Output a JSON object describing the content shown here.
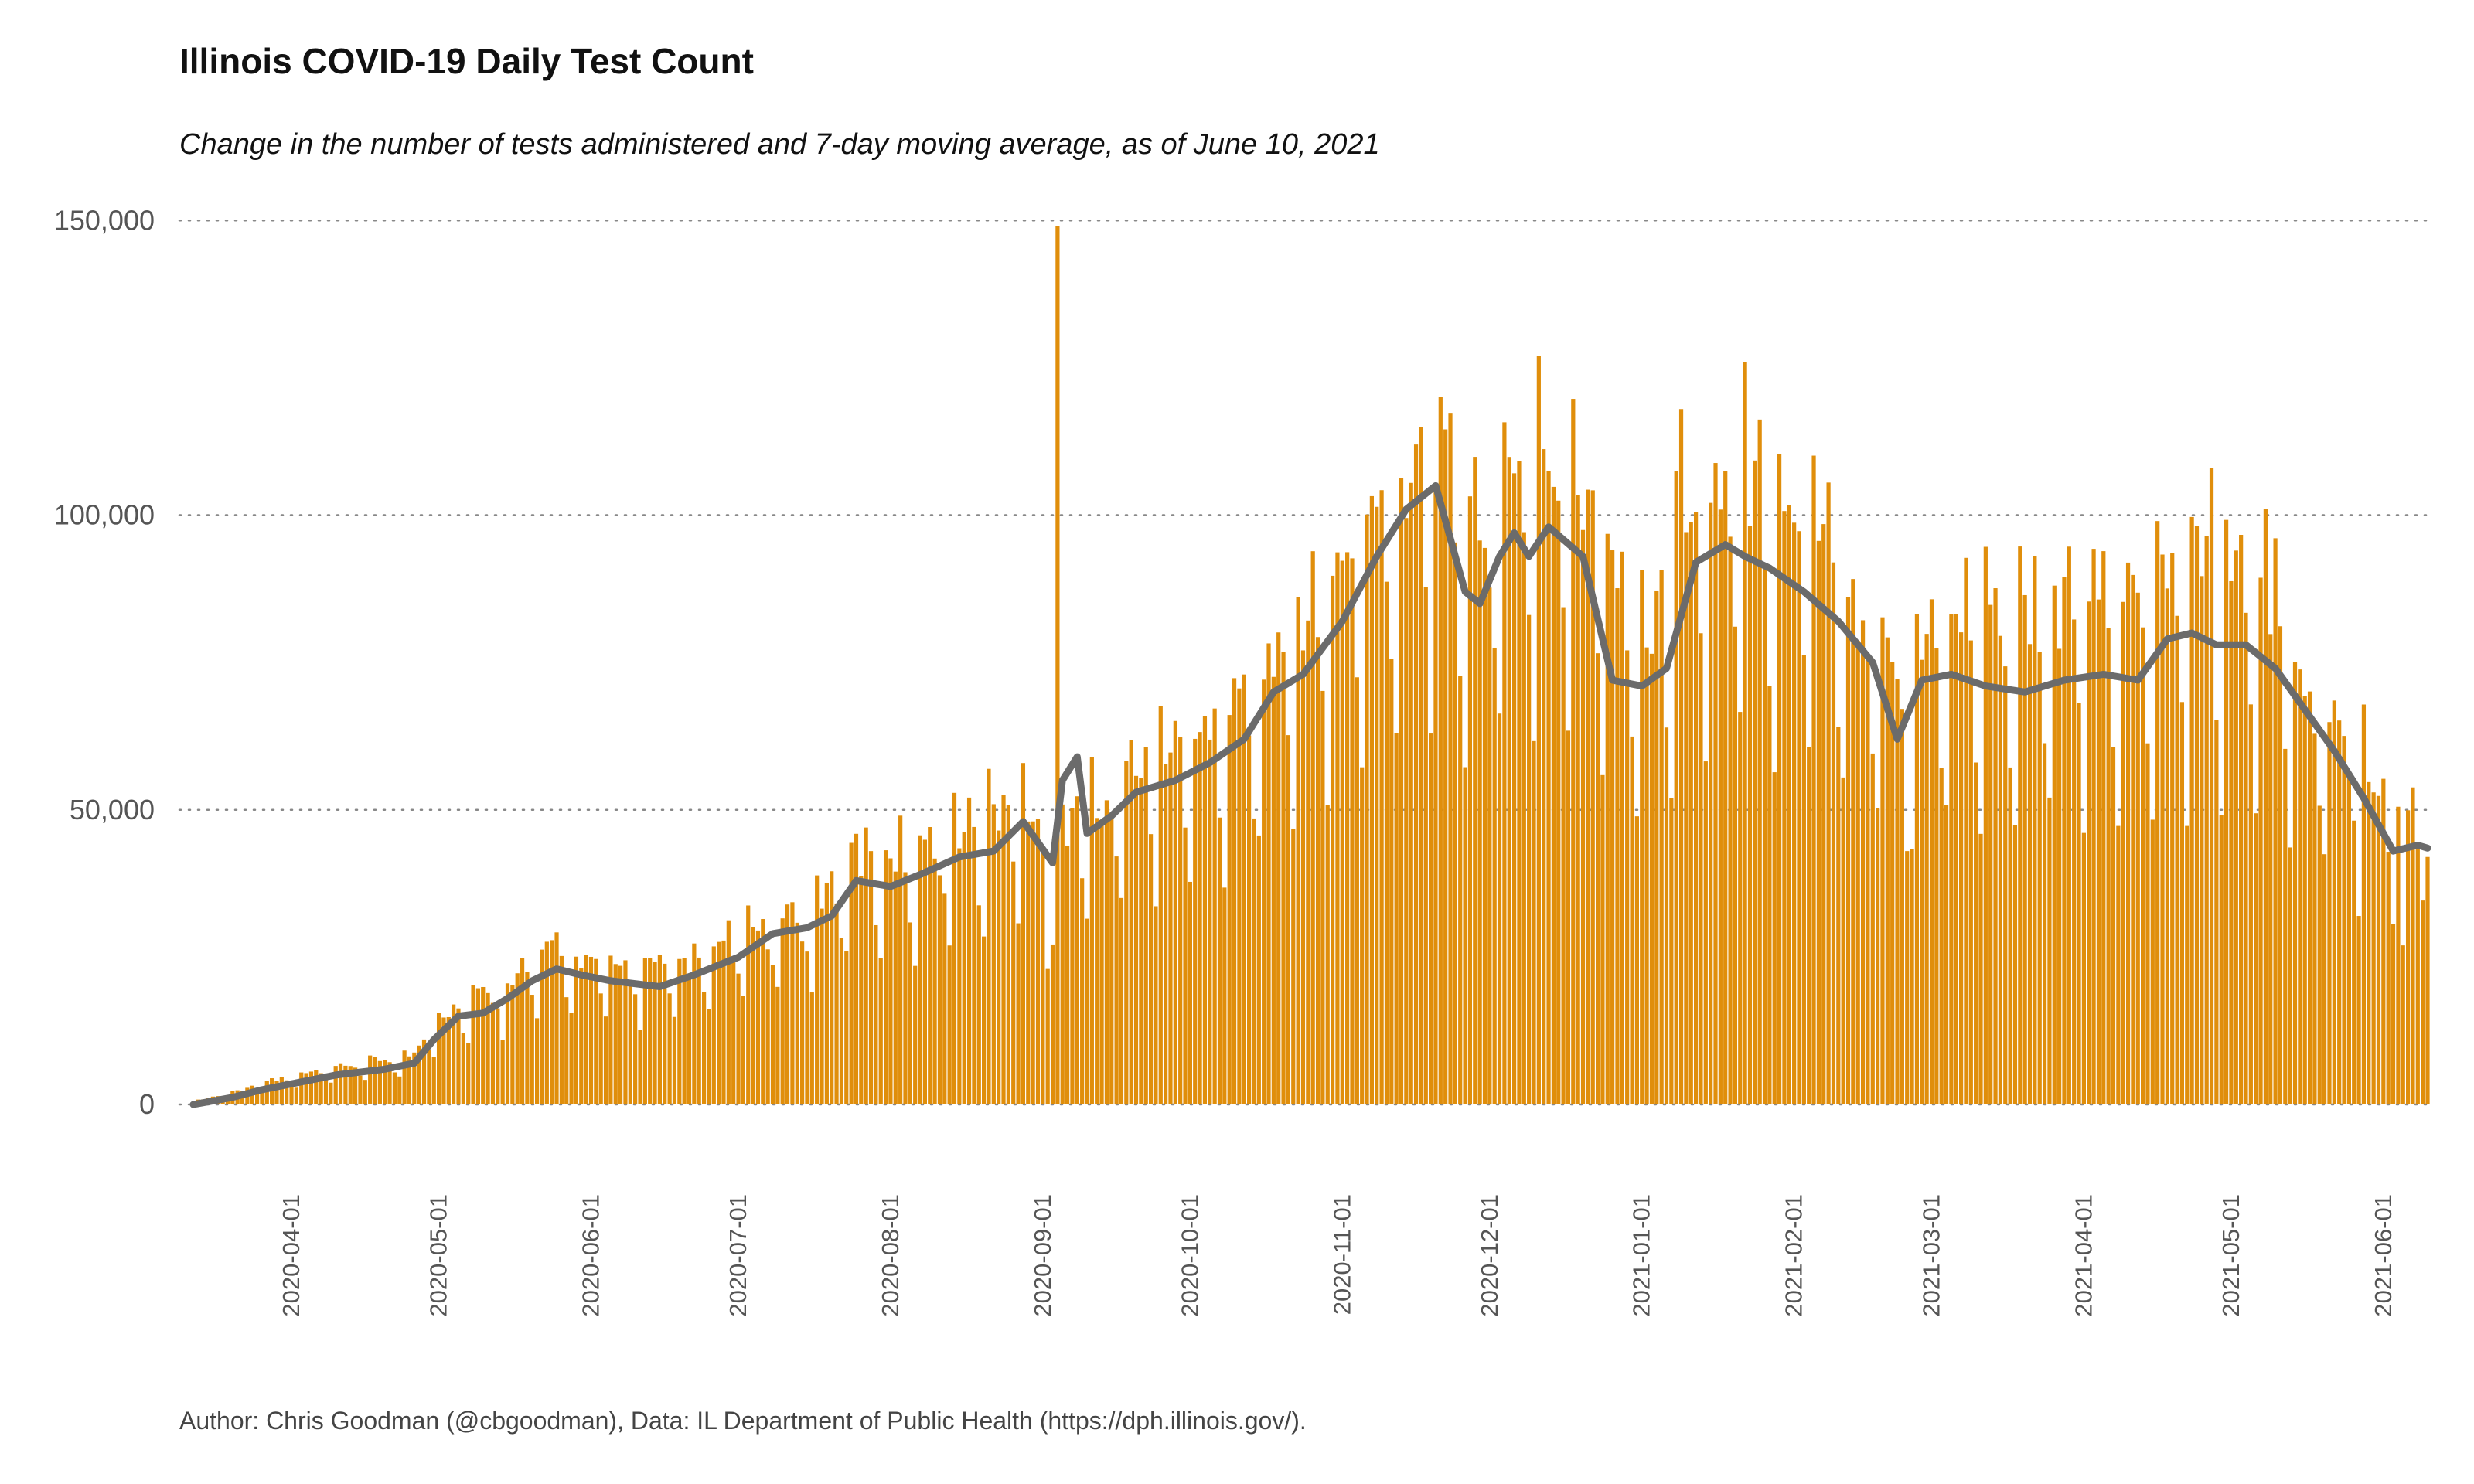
{
  "title": "Illinois COVID-19 Daily Test Count",
  "subtitle": "Change in the number of tests administered and 7-day moving average, as of June 10, 2021",
  "caption": "Author: Chris Goodman (@cbgoodman), Data: IL Department of Public Health (https://dph.illinois.gov/).",
  "colors": {
    "bars": "#E08E0B",
    "average_line": "#6B6B6B",
    "grid": "#888888"
  },
  "chart_data": {
    "type": "bar",
    "series": [
      {
        "name": "",
        "kind": "bar",
        "source": "daily_tests"
      },
      {
        "name": "",
        "kind": "line",
        "source": "moving_average_7day"
      }
    ],
    "x_start": "2020-03-12",
    "x_end": "2021-06-10",
    "xlabel": "",
    "ylabel": "",
    "ylim": [
      -8000,
      152000
    ],
    "grid": {
      "horizontal": true,
      "style": "dotted"
    },
    "y_ticks": [
      0,
      50000,
      100000,
      150000
    ],
    "y_tick_labels": [
      "0",
      "50,000",
      "100,000",
      "150,000"
    ],
    "x_ticks": [
      "2020-04-01",
      "2020-05-01",
      "2020-06-01",
      "2020-07-01",
      "2020-08-01",
      "2020-09-01",
      "2020-10-01",
      "2020-11-01",
      "2020-12-01",
      "2021-01-01",
      "2021-02-01",
      "2021-03-01",
      "2021-04-01",
      "2021-05-01",
      "2021-06-01"
    ],
    "moving_average_7day": [
      {
        "date": "2020-03-12",
        "value": 0
      },
      {
        "date": "2020-03-20",
        "value": 1200
      },
      {
        "date": "2020-03-26",
        "value": 2500
      },
      {
        "date": "2020-04-01",
        "value": 3500
      },
      {
        "date": "2020-04-10",
        "value": 5000
      },
      {
        "date": "2020-04-20",
        "value": 6000
      },
      {
        "date": "2020-04-26",
        "value": 7000
      },
      {
        "date": "2020-04-30",
        "value": 11000
      },
      {
        "date": "2020-05-05",
        "value": 15000
      },
      {
        "date": "2020-05-10",
        "value": 15500
      },
      {
        "date": "2020-05-15",
        "value": 18000
      },
      {
        "date": "2020-05-20",
        "value": 21000
      },
      {
        "date": "2020-05-25",
        "value": 23000
      },
      {
        "date": "2020-05-30",
        "value": 22000
      },
      {
        "date": "2020-06-05",
        "value": 21000
      },
      {
        "date": "2020-06-15",
        "value": 20000
      },
      {
        "date": "2020-06-22",
        "value": 22000
      },
      {
        "date": "2020-07-01",
        "value": 25000
      },
      {
        "date": "2020-07-08",
        "value": 29000
      },
      {
        "date": "2020-07-15",
        "value": 30000
      },
      {
        "date": "2020-07-20",
        "value": 32000
      },
      {
        "date": "2020-07-25",
        "value": 38000
      },
      {
        "date": "2020-08-01",
        "value": 37000
      },
      {
        "date": "2020-08-07",
        "value": 39000
      },
      {
        "date": "2020-08-15",
        "value": 42000
      },
      {
        "date": "2020-08-22",
        "value": 43000
      },
      {
        "date": "2020-08-28",
        "value": 48000
      },
      {
        "date": "2020-09-03",
        "value": 41000
      },
      {
        "date": "2020-09-05",
        "value": 55000
      },
      {
        "date": "2020-09-08",
        "value": 59000
      },
      {
        "date": "2020-09-10",
        "value": 46000
      },
      {
        "date": "2020-09-15",
        "value": 49000
      },
      {
        "date": "2020-09-20",
        "value": 53000
      },
      {
        "date": "2020-09-28",
        "value": 55000
      },
      {
        "date": "2020-10-05",
        "value": 58000
      },
      {
        "date": "2020-10-12",
        "value": 62000
      },
      {
        "date": "2020-10-18",
        "value": 70000
      },
      {
        "date": "2020-10-24",
        "value": 73000
      },
      {
        "date": "2020-11-01",
        "value": 82000
      },
      {
        "date": "2020-11-08",
        "value": 93000
      },
      {
        "date": "2020-11-14",
        "value": 101000
      },
      {
        "date": "2020-11-20",
        "value": 105000
      },
      {
        "date": "2020-11-26",
        "value": 87000
      },
      {
        "date": "2020-11-29",
        "value": 85000
      },
      {
        "date": "2020-12-03",
        "value": 93000
      },
      {
        "date": "2020-12-06",
        "value": 97000
      },
      {
        "date": "2020-12-09",
        "value": 93000
      },
      {
        "date": "2020-12-13",
        "value": 98000
      },
      {
        "date": "2020-12-20",
        "value": 93000
      },
      {
        "date": "2020-12-26",
        "value": 72000
      },
      {
        "date": "2021-01-01",
        "value": 71000
      },
      {
        "date": "2021-01-06",
        "value": 74000
      },
      {
        "date": "2021-01-12",
        "value": 92000
      },
      {
        "date": "2021-01-18",
        "value": 95000
      },
      {
        "date": "2021-01-22",
        "value": 93000
      },
      {
        "date": "2021-01-27",
        "value": 91000
      },
      {
        "date": "2021-02-03",
        "value": 87000
      },
      {
        "date": "2021-02-10",
        "value": 82000
      },
      {
        "date": "2021-02-17",
        "value": 75000
      },
      {
        "date": "2021-02-22",
        "value": 62000
      },
      {
        "date": "2021-02-27",
        "value": 72000
      },
      {
        "date": "2021-03-05",
        "value": 73000
      },
      {
        "date": "2021-03-12",
        "value": 71000
      },
      {
        "date": "2021-03-20",
        "value": 70000
      },
      {
        "date": "2021-03-28",
        "value": 72000
      },
      {
        "date": "2021-04-05",
        "value": 73000
      },
      {
        "date": "2021-04-12",
        "value": 72000
      },
      {
        "date": "2021-04-18",
        "value": 79000
      },
      {
        "date": "2021-04-23",
        "value": 80000
      },
      {
        "date": "2021-04-28",
        "value": 78000
      },
      {
        "date": "2021-05-04",
        "value": 78000
      },
      {
        "date": "2021-05-10",
        "value": 74000
      },
      {
        "date": "2021-05-16",
        "value": 67000
      },
      {
        "date": "2021-05-22",
        "value": 60000
      },
      {
        "date": "2021-05-28",
        "value": 52000
      },
      {
        "date": "2021-06-03",
        "value": 43000
      },
      {
        "date": "2021-06-08",
        "value": 44000
      },
      {
        "date": "2021-06-10",
        "value": 43500
      }
    ],
    "daily_tests_envelope": [
      {
        "date": "2020-03-12",
        "value": 500
      },
      {
        "date": "2020-03-20",
        "value": 2000
      },
      {
        "date": "2020-03-26",
        "value": 3500
      },
      {
        "date": "2020-04-05",
        "value": 5000
      },
      {
        "date": "2020-04-15",
        "value": 6500
      },
      {
        "date": "2020-04-26",
        "value": 8000
      },
      {
        "date": "2020-04-30",
        "value": 14000
      },
      {
        "date": "2020-05-05",
        "value": 16000
      },
      {
        "date": "2020-05-15",
        "value": 20000
      },
      {
        "date": "2020-05-25",
        "value": 25000
      },
      {
        "date": "2020-06-05",
        "value": 22000
      },
      {
        "date": "2020-06-20",
        "value": 22000
      },
      {
        "date": "2020-07-01",
        "value": 27000
      },
      {
        "date": "2020-07-15",
        "value": 31000
      },
      {
        "date": "2020-07-25",
        "value": 40000
      },
      {
        "date": "2020-08-10",
        "value": 42000
      },
      {
        "date": "2020-08-28",
        "value": 50000
      },
      {
        "date": "2020-09-03",
        "value": 45000
      },
      {
        "date": "2020-09-12",
        "value": 50000
      },
      {
        "date": "2020-09-25",
        "value": 57000
      },
      {
        "date": "2020-10-10",
        "value": 63000
      },
      {
        "date": "2020-10-24",
        "value": 78000
      },
      {
        "date": "2020-11-05",
        "value": 90000
      },
      {
        "date": "2020-11-18",
        "value": 106000
      },
      {
        "date": "2020-11-28",
        "value": 93000
      },
      {
        "date": "2020-12-10",
        "value": 104000
      },
      {
        "date": "2020-12-22",
        "value": 97000
      },
      {
        "date": "2021-01-01",
        "value": 78000
      },
      {
        "date": "2021-01-15",
        "value": 100000
      },
      {
        "date": "2021-01-27",
        "value": 97000
      },
      {
        "date": "2021-02-10",
        "value": 88000
      },
      {
        "date": "2021-02-22",
        "value": 70000
      },
      {
        "date": "2021-03-05",
        "value": 79000
      },
      {
        "date": "2021-03-25",
        "value": 78000
      },
      {
        "date": "2021-04-15",
        "value": 82000
      },
      {
        "date": "2021-04-28",
        "value": 86000
      },
      {
        "date": "2021-05-10",
        "value": 80000
      },
      {
        "date": "2021-05-25",
        "value": 58000
      },
      {
        "date": "2021-06-10",
        "value": 44000
      }
    ],
    "daily_tests_notable": [
      {
        "date": "2020-09-04",
        "value": 149000
      },
      {
        "date": "2020-09-02",
        "value": 23000
      },
      {
        "date": "2020-11-21",
        "value": 120000
      },
      {
        "date": "2020-12-11",
        "value": 127000
      },
      {
        "date": "2021-01-22",
        "value": 126000
      },
      {
        "date": "2020-11-17",
        "value": 115000
      },
      {
        "date": "2021-01-09",
        "value": 118000
      },
      {
        "date": "2021-04-27",
        "value": 108000
      },
      {
        "date": "2021-05-08",
        "value": 101000
      },
      {
        "date": "2021-02-24",
        "value": 43000
      },
      {
        "date": "2021-06-05",
        "value": 27000
      },
      {
        "date": "2021-06-10",
        "value": 42000
      }
    ]
  }
}
